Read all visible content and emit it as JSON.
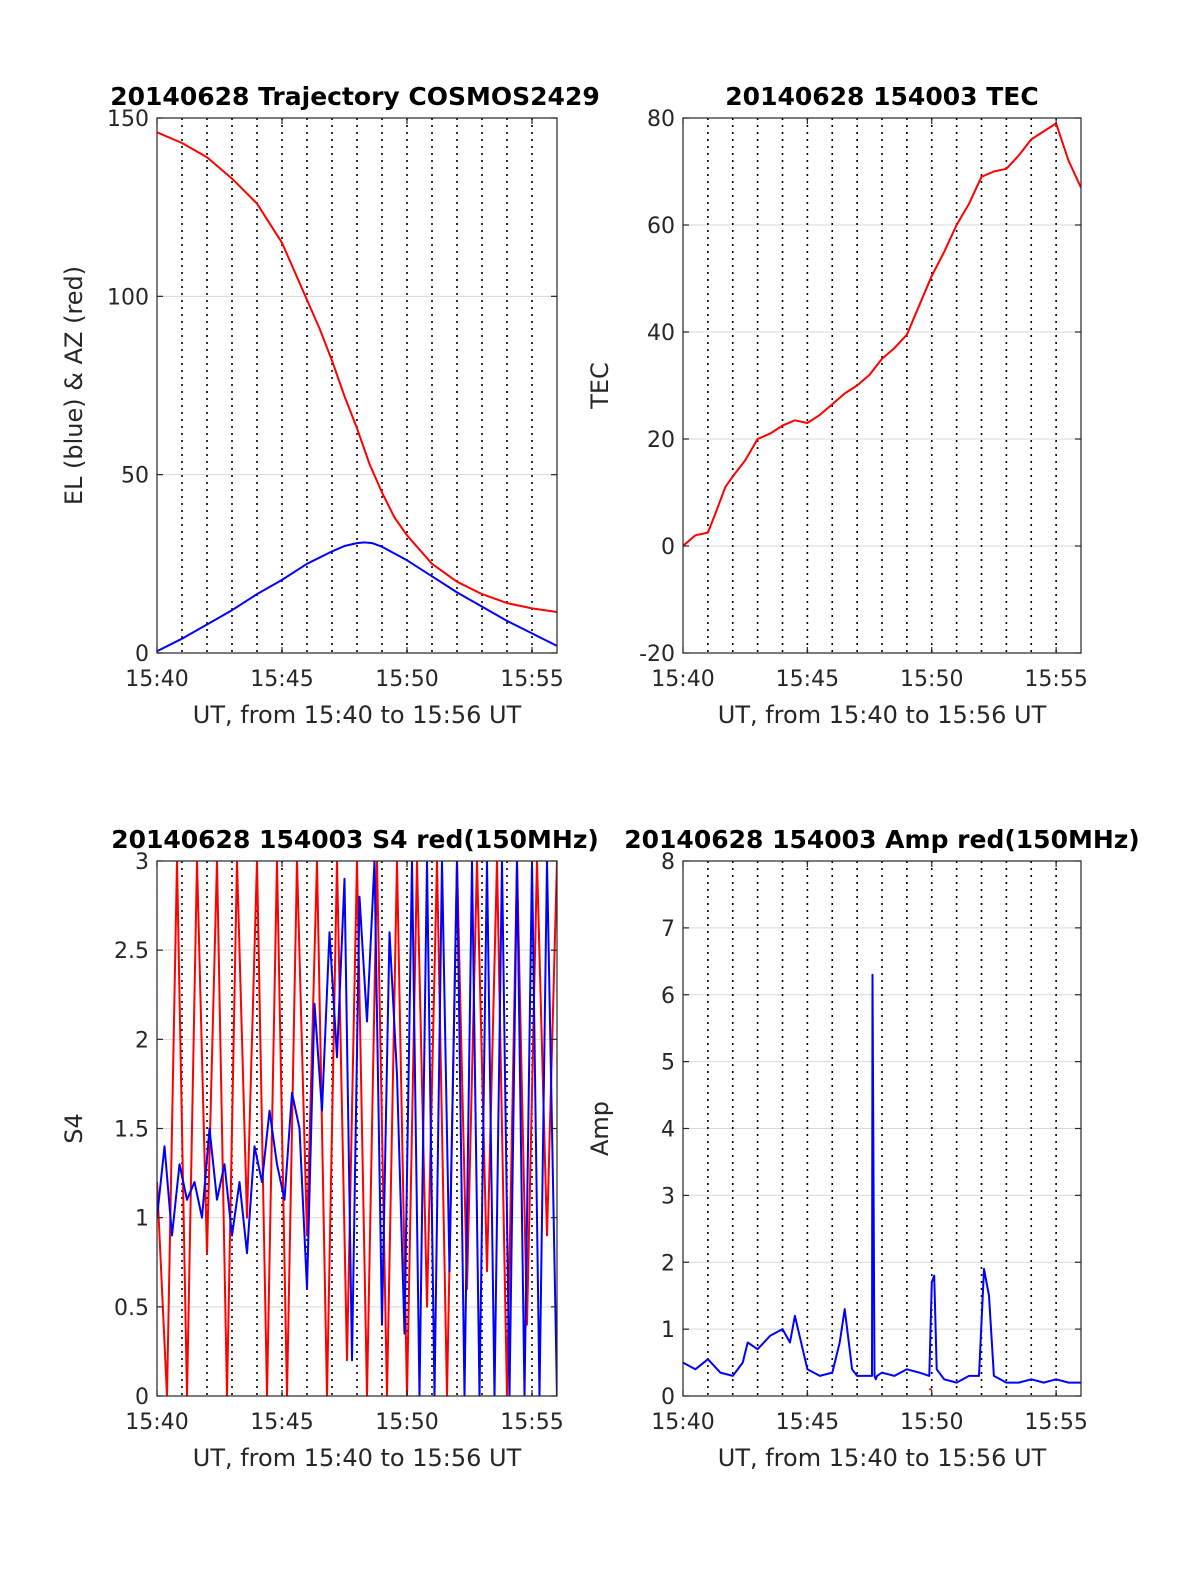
{
  "figure": {
    "background": "#ffffff",
    "axis_color": "#262626",
    "grid_color": "#d9d9d9",
    "vline_color": "#000000"
  },
  "chart_data": [
    {
      "type": "line",
      "title": "20140628 Trajectory COSMOS2429",
      "xlabel": "UT, from 15:40 to 15:56 UT",
      "ylabel": "EL (blue) & AZ (red)",
      "x_range_minutes": [
        0,
        16
      ],
      "xticks": [
        "15:40",
        "15:45",
        "15:50",
        "15:55"
      ],
      "xtick_minutes": [
        0,
        5,
        10,
        15
      ],
      "ylim": [
        0,
        150
      ],
      "yticks": [
        "0",
        "50",
        "100",
        "150"
      ],
      "ytick_values": [
        0,
        50,
        100,
        150
      ],
      "vertical_dotted_minutes": [
        1,
        2,
        3,
        4,
        5,
        6,
        7,
        8,
        9,
        10,
        11,
        12,
        13,
        14,
        15
      ],
      "grid": "horizontal",
      "series": [
        {
          "color": "#ff0000",
          "x": [
            0,
            1,
            2,
            3,
            4,
            5,
            6,
            6.5,
            7,
            7.5,
            8,
            8.5,
            9,
            9.5,
            10,
            11,
            12,
            13,
            14,
            15,
            16
          ],
          "values": [
            146,
            143,
            139,
            133,
            126,
            115,
            99,
            91,
            82,
            72,
            63,
            53,
            45,
            38,
            33,
            25,
            20,
            16.5,
            14,
            12.5,
            11.5
          ]
        },
        {
          "color": "#0000ff",
          "x": [
            0,
            1,
            2,
            3,
            4,
            5,
            6,
            7,
            7.5,
            8,
            8.3,
            8.6,
            9,
            10,
            11,
            12,
            13,
            14,
            15,
            16
          ],
          "values": [
            0.5,
            4,
            8,
            12,
            16.5,
            20.5,
            25,
            28.5,
            30,
            30.8,
            31,
            30.8,
            29.8,
            26,
            21.5,
            17,
            13,
            9,
            5.5,
            2
          ]
        }
      ]
    },
    {
      "type": "line",
      "title": "20140628 154003 TEC",
      "xlabel": "UT, from 15:40 to 15:56 UT",
      "ylabel": "TEC",
      "x_range_minutes": [
        0,
        16
      ],
      "xticks": [
        "15:40",
        "15:45",
        "15:50",
        "15:55"
      ],
      "xtick_minutes": [
        0,
        5,
        10,
        15
      ],
      "ylim": [
        -20,
        80
      ],
      "yticks": [
        "-20",
        "0",
        "20",
        "40",
        "60",
        "80"
      ],
      "ytick_values": [
        -20,
        0,
        20,
        40,
        60,
        80
      ],
      "vertical_dotted_minutes": [
        1,
        2,
        3,
        4,
        5,
        6,
        7,
        8,
        9,
        10,
        11,
        12,
        13,
        14,
        15
      ],
      "grid": "horizontal",
      "series": [
        {
          "color": "#ff0000",
          "x": [
            0,
            0.5,
            1,
            1.3,
            1.7,
            2,
            2.5,
            3,
            3.5,
            4,
            4.5,
            5,
            5.5,
            6,
            6.5,
            7,
            7.5,
            8,
            8.5,
            9,
            9.5,
            10,
            10.5,
            11,
            11.5,
            12,
            12.5,
            13,
            13.5,
            14,
            14.5,
            15,
            15.5,
            16
          ],
          "values": [
            0,
            2,
            2.5,
            6,
            11,
            13,
            16,
            20,
            21,
            22.5,
            23.5,
            23,
            24.5,
            26.5,
            28.5,
            30,
            32,
            35,
            37,
            39.5,
            45,
            50.5,
            55,
            60,
            64,
            69,
            70,
            70.5,
            73,
            76,
            77.5,
            79,
            72,
            67
          ]
        }
      ]
    },
    {
      "type": "line",
      "title": "20140628 154003 S4 red(150MHz)",
      "xlabel": "UT, from 15:40 to 15:56 UT",
      "ylabel": "S4",
      "x_range_minutes": [
        0,
        16
      ],
      "xticks": [
        "15:40",
        "15:45",
        "15:50",
        "15:55"
      ],
      "xtick_minutes": [
        0,
        5,
        10,
        15
      ],
      "ylim": [
        0,
        3
      ],
      "yticks": [
        "0",
        "0.5",
        "1",
        "1.5",
        "2",
        "2.5",
        "3"
      ],
      "ytick_values": [
        0,
        0.5,
        1,
        1.5,
        2,
        2.5,
        3
      ],
      "vertical_dotted_minutes": [
        1,
        2,
        3,
        4,
        5,
        6,
        7,
        8,
        9,
        10,
        11,
        12,
        13,
        14,
        15
      ],
      "grid": "horizontal",
      "series": [
        {
          "color": "#ff0000",
          "x": [
            0,
            0.4,
            0.8,
            1.2,
            1.6,
            2,
            2.4,
            2.8,
            3.2,
            3.6,
            4,
            4.4,
            4.8,
            5.2,
            5.6,
            6,
            6.4,
            6.8,
            7.2,
            7.6,
            8,
            8.4,
            8.8,
            9.2,
            9.6,
            10,
            10.4,
            10.8,
            11.2,
            11.6,
            12,
            12.4,
            12.8,
            13.2,
            13.6,
            14,
            14.4,
            14.8,
            15.2,
            15.6,
            16
          ],
          "values": [
            1.2,
            0,
            3,
            0,
            3,
            0.8,
            3,
            0,
            3,
            1.0,
            3,
            0,
            3,
            0,
            3,
            0.9,
            3,
            0,
            3,
            0.2,
            3,
            0,
            3,
            0,
            3,
            0,
            3,
            0.5,
            3,
            0,
            3,
            0.6,
            3,
            0.7,
            3,
            0,
            3,
            0.4,
            3,
            0.9,
            3
          ]
        },
        {
          "color": "#0000ff",
          "x": [
            0,
            0.3,
            0.6,
            0.9,
            1.2,
            1.5,
            1.8,
            2.1,
            2.4,
            2.7,
            3.0,
            3.3,
            3.6,
            3.9,
            4.2,
            4.5,
            4.8,
            5.1,
            5.4,
            5.7,
            6.0,
            6.3,
            6.6,
            6.9,
            7.2,
            7.5,
            7.8,
            8.1,
            8.4,
            8.7,
            9.0,
            9.3,
            9.6,
            9.9,
            10.2,
            10.5,
            10.8,
            11.1,
            11.4,
            11.7,
            12.0,
            12.3,
            12.6,
            12.9,
            13.2,
            13.5,
            13.8,
            14.1,
            14.4,
            14.7,
            15.0,
            15.3,
            15.6,
            16
          ],
          "values": [
            1.0,
            1.4,
            0.9,
            1.3,
            1.1,
            1.2,
            1.0,
            1.5,
            1.1,
            1.3,
            0.9,
            1.2,
            0.8,
            1.4,
            1.2,
            1.6,
            1.3,
            1.1,
            1.7,
            1.5,
            0.6,
            2.2,
            1.6,
            2.6,
            1.9,
            2.9,
            0.2,
            2.8,
            2.1,
            3.0,
            0.4,
            2.6,
            1.8,
            0.35,
            3.0,
            0,
            3.0,
            0,
            3.0,
            0.7,
            3.0,
            0,
            3.0,
            0,
            3.0,
            0,
            3.0,
            0,
            3.0,
            0,
            3.0,
            0,
            3.0,
            0
          ]
        }
      ]
    },
    {
      "type": "line",
      "title": "20140628 154003 Amp red(150MHz)",
      "xlabel": "UT, from 15:40 to 15:56 UT",
      "ylabel": "Amp",
      "x_range_minutes": [
        0,
        16
      ],
      "xticks": [
        "15:40",
        "15:45",
        "15:50",
        "15:55"
      ],
      "xtick_minutes": [
        0,
        5,
        10,
        15
      ],
      "ylim": [
        0,
        8
      ],
      "yticks": [
        "0",
        "1",
        "2",
        "3",
        "4",
        "5",
        "6",
        "7",
        "8"
      ],
      "ytick_values": [
        0,
        1,
        2,
        3,
        4,
        5,
        6,
        7,
        8
      ],
      "vertical_dotted_minutes": [
        1,
        2,
        3,
        4,
        5,
        6,
        7,
        8,
        9,
        10,
        11,
        12,
        13,
        14,
        15
      ],
      "grid": "horizontal",
      "series": [
        {
          "color": "#ff0000",
          "x": [
            9.9,
            10.0
          ],
          "values": [
            0.1,
            0.1
          ]
        },
        {
          "color": "#0000ff",
          "x": [
            0,
            0.5,
            1,
            1.5,
            2,
            2.4,
            2.6,
            3,
            3.5,
            4,
            4.3,
            4.5,
            5,
            5.5,
            6,
            6.3,
            6.5,
            6.8,
            7,
            7.6,
            7.62,
            7.7,
            7.75,
            7.8,
            8,
            8.5,
            9,
            9.5,
            9.9,
            10.0,
            10.1,
            10.2,
            10.5,
            11,
            11.5,
            11.9,
            12.1,
            12.3,
            12.5,
            13,
            13.5,
            14,
            14.5,
            15,
            15.5,
            16
          ],
          "values": [
            0.5,
            0.4,
            0.55,
            0.35,
            0.3,
            0.5,
            0.8,
            0.7,
            0.9,
            1.0,
            0.8,
            1.2,
            0.4,
            0.3,
            0.35,
            0.8,
            1.3,
            0.4,
            0.3,
            0.3,
            6.3,
            0.3,
            0.25,
            0.3,
            0.35,
            0.3,
            0.4,
            0.35,
            0.3,
            1.7,
            1.8,
            0.4,
            0.25,
            0.2,
            0.3,
            0.3,
            1.9,
            1.5,
            0.3,
            0.2,
            0.2,
            0.25,
            0.2,
            0.25,
            0.2,
            0.2
          ]
        }
      ]
    }
  ]
}
